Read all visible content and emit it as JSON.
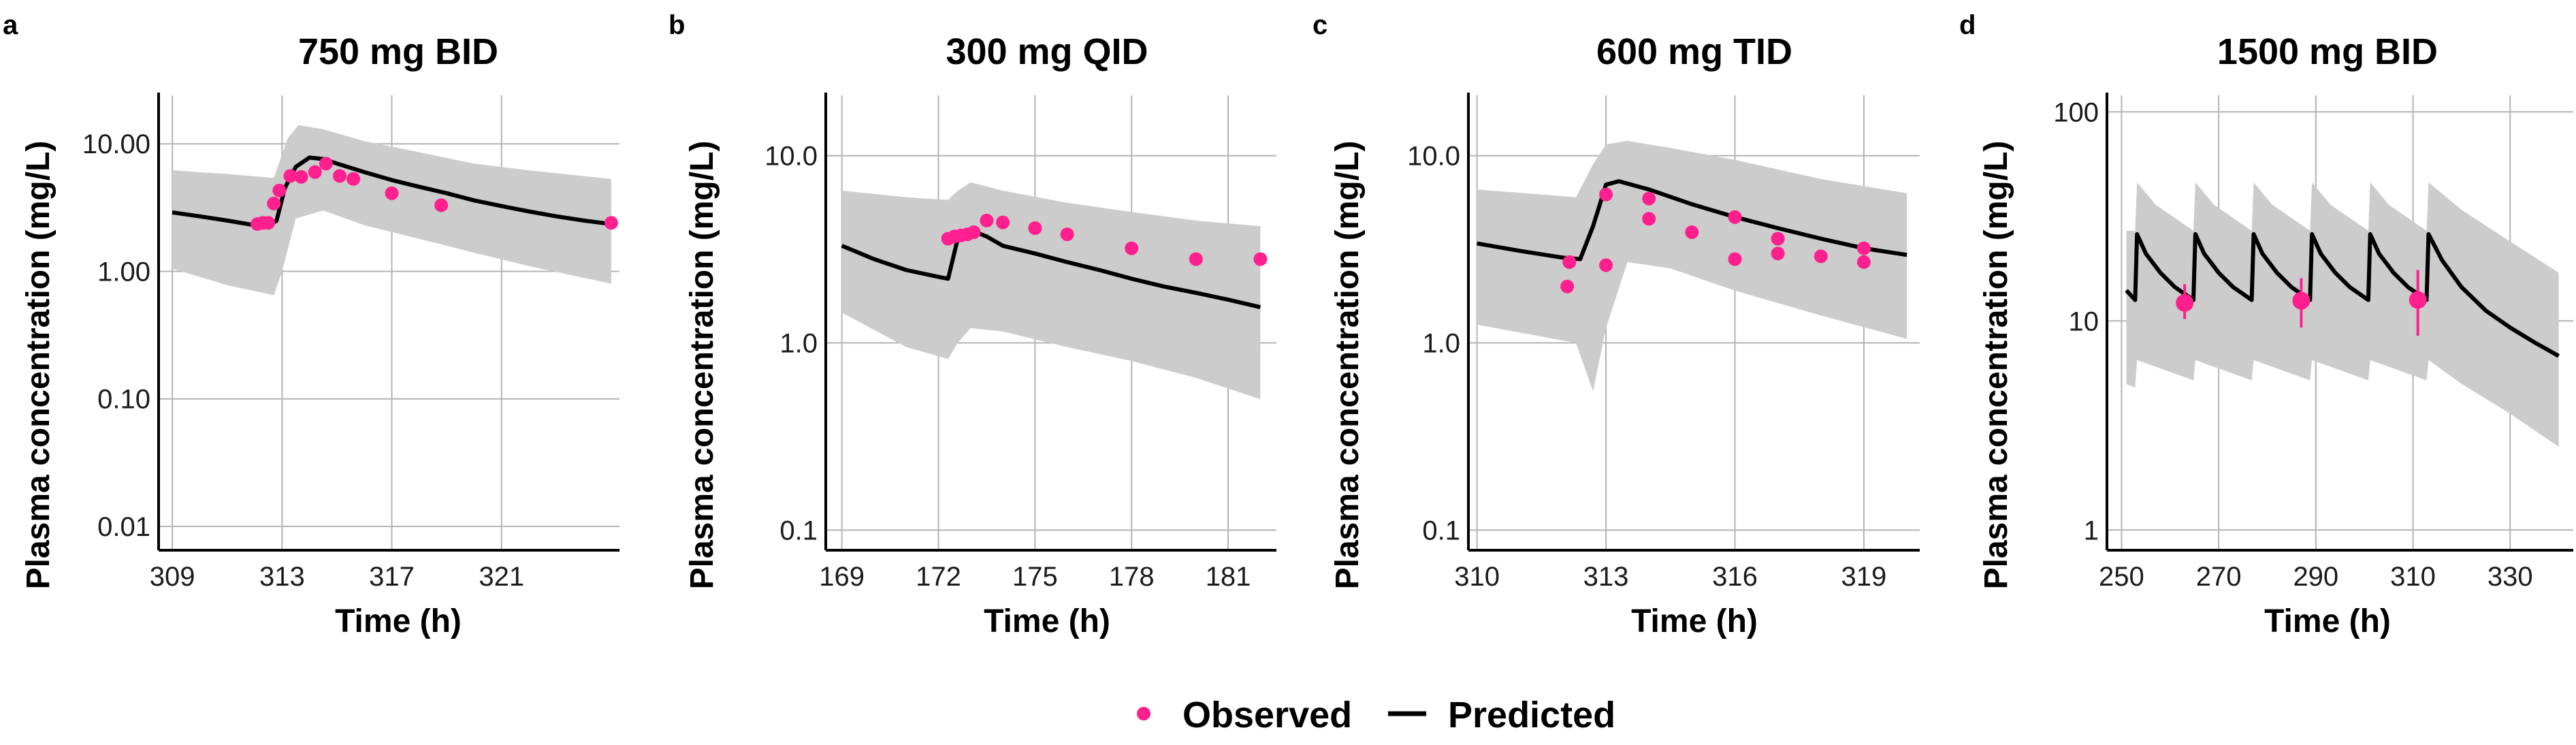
{
  "colors": {
    "observed": "#ff1f8e",
    "predicted": "#000000",
    "band": "#cccccc",
    "grid": "#b3b3b3",
    "axis": "#000000"
  },
  "legend": {
    "observed_label": "Observed",
    "predicted_label": "Predicted"
  },
  "chart_data": [
    {
      "panel": "a",
      "type": "line",
      "title": "750 mg BID",
      "xlabel": "Time (h)",
      "ylabel": "Plasma concentration (mg/L)",
      "yscale": "log",
      "xlim": [
        308.5,
        325.3
      ],
      "ylim": [
        0.0065,
        24
      ],
      "xticks": [
        309,
        313,
        317,
        321
      ],
      "xtick_labels": [
        "309",
        "313",
        "317",
        "321"
      ],
      "yticks": [
        0.01,
        0.1,
        1,
        10
      ],
      "ytick_labels": [
        "0.01",
        "0.10",
        "1.00",
        "10.00"
      ],
      "predicted": [
        [
          309,
          2.9
        ],
        [
          310,
          2.7
        ],
        [
          311,
          2.5
        ],
        [
          312,
          2.3
        ],
        [
          312.5,
          2.25
        ],
        [
          312.8,
          2.5
        ],
        [
          313.1,
          4.5
        ],
        [
          313.5,
          6.6
        ],
        [
          314,
          7.8
        ],
        [
          314.5,
          7.6
        ],
        [
          315,
          7.0
        ],
        [
          316,
          6.0
        ],
        [
          317,
          5.2
        ],
        [
          318,
          4.6
        ],
        [
          319,
          4.1
        ],
        [
          320,
          3.6
        ],
        [
          321,
          3.25
        ],
        [
          322,
          2.95
        ],
        [
          323,
          2.7
        ],
        [
          324,
          2.5
        ],
        [
          325,
          2.35
        ]
      ],
      "band_upper": [
        [
          309,
          6.2
        ],
        [
          311,
          5.8
        ],
        [
          312.7,
          5.4
        ],
        [
          313.2,
          11.0
        ],
        [
          313.6,
          14.0
        ],
        [
          314.5,
          13.0
        ],
        [
          316,
          10.5
        ],
        [
          318,
          8.6
        ],
        [
          320,
          7.0
        ],
        [
          322,
          6.2
        ],
        [
          325,
          5.3
        ]
      ],
      "band_lower": [
        [
          325,
          0.8
        ],
        [
          322,
          1.1
        ],
        [
          320,
          1.4
        ],
        [
          318,
          1.8
        ],
        [
          316,
          2.3
        ],
        [
          314.5,
          3.0
        ],
        [
          313.5,
          2.6
        ],
        [
          313,
          1.0
        ],
        [
          312.7,
          0.65
        ],
        [
          311,
          0.78
        ],
        [
          309,
          1.05
        ]
      ],
      "observed": [
        [
          312.1,
          2.35
        ],
        [
          312.3,
          2.4
        ],
        [
          312.5,
          2.4
        ],
        [
          312.7,
          3.4
        ],
        [
          312.9,
          4.3
        ],
        [
          313.3,
          5.6
        ],
        [
          313.7,
          5.5
        ],
        [
          314.2,
          6.0
        ],
        [
          314.6,
          7.0
        ],
        [
          315.1,
          5.6
        ],
        [
          315.6,
          5.3
        ],
        [
          317,
          4.1
        ],
        [
          318.8,
          3.3
        ],
        [
          325,
          2.4
        ]
      ],
      "error_bars": []
    },
    {
      "panel": "b",
      "type": "line",
      "title": "300 mg QID",
      "xlabel": "Time (h)",
      "ylabel": "Plasma concentration (mg/L)",
      "yscale": "log",
      "xlim": [
        168.5,
        182.5
      ],
      "ylim": [
        0.078,
        21
      ],
      "xticks": [
        169,
        172,
        175,
        178,
        181
      ],
      "xtick_labels": [
        "169",
        "172",
        "175",
        "178",
        "181"
      ],
      "yticks": [
        0.1,
        1,
        10
      ],
      "ytick_labels": [
        "0.1",
        "1.0",
        "10.0"
      ],
      "predicted": [
        [
          169,
          3.3
        ],
        [
          170,
          2.8
        ],
        [
          171,
          2.45
        ],
        [
          172,
          2.25
        ],
        [
          172.3,
          2.2
        ],
        [
          172.6,
          3.6
        ],
        [
          173,
          4.0
        ],
        [
          173.5,
          3.7
        ],
        [
          174,
          3.3
        ],
        [
          175,
          3.0
        ],
        [
          176,
          2.7
        ],
        [
          177,
          2.45
        ],
        [
          178,
          2.2
        ],
        [
          179,
          2.0
        ],
        [
          180,
          1.85
        ],
        [
          181,
          1.7
        ],
        [
          182,
          1.55
        ]
      ],
      "band_upper": [
        [
          169,
          6.5
        ],
        [
          171,
          6.0
        ],
        [
          172.3,
          5.8
        ],
        [
          172.6,
          6.5
        ],
        [
          173,
          7.2
        ],
        [
          174,
          6.5
        ],
        [
          176,
          5.6
        ],
        [
          178,
          5.0
        ],
        [
          180,
          4.5
        ],
        [
          182,
          4.2
        ]
      ],
      "band_lower": [
        [
          182,
          0.5
        ],
        [
          180,
          0.65
        ],
        [
          178,
          0.8
        ],
        [
          176,
          0.95
        ],
        [
          174,
          1.15
        ],
        [
          173,
          1.2
        ],
        [
          172.6,
          1.0
        ],
        [
          172.3,
          0.82
        ],
        [
          171,
          0.95
        ],
        [
          169,
          1.45
        ]
      ],
      "observed": [
        [
          172.3,
          3.6
        ],
        [
          172.5,
          3.7
        ],
        [
          172.7,
          3.75
        ],
        [
          172.9,
          3.8
        ],
        [
          173.1,
          3.9
        ],
        [
          173.5,
          4.5
        ],
        [
          174,
          4.4
        ],
        [
          175,
          4.1
        ],
        [
          176,
          3.8
        ],
        [
          178,
          3.2
        ],
        [
          180,
          2.8
        ],
        [
          182,
          2.8
        ]
      ],
      "error_bars": []
    },
    {
      "panel": "c",
      "type": "line",
      "title": "600 mg TID",
      "xlabel": "Time (h)",
      "ylabel": "Plasma concentration (mg/L)",
      "yscale": "log",
      "xlim": [
        309.8,
        320.3
      ],
      "ylim": [
        0.078,
        21
      ],
      "xticks": [
        310,
        313,
        316,
        319
      ],
      "xtick_labels": [
        "310",
        "313",
        "316",
        "319"
      ],
      "yticks": [
        0.1,
        1,
        10
      ],
      "ytick_labels": [
        "0.1",
        "1.0",
        "10.0"
      ],
      "predicted": [
        [
          310,
          3.4
        ],
        [
          311,
          3.1
        ],
        [
          312,
          2.85
        ],
        [
          312.4,
          2.8
        ],
        [
          312.7,
          4.2
        ],
        [
          313,
          7.0
        ],
        [
          313.3,
          7.3
        ],
        [
          314,
          6.6
        ],
        [
          315,
          5.5
        ],
        [
          316,
          4.7
        ],
        [
          317,
          4.1
        ],
        [
          318,
          3.6
        ],
        [
          319,
          3.2
        ],
        [
          320,
          2.95
        ]
      ],
      "band_upper": [
        [
          310,
          6.6
        ],
        [
          312.3,
          6.0
        ],
        [
          312.7,
          9.0
        ],
        [
          313,
          11.5
        ],
        [
          313.5,
          12.0
        ],
        [
          314.5,
          11.0
        ],
        [
          316,
          9.5
        ],
        [
          318,
          7.5
        ],
        [
          320,
          6.3
        ]
      ],
      "band_lower": [
        [
          320,
          1.05
        ],
        [
          318,
          1.4
        ],
        [
          316,
          1.9
        ],
        [
          314.5,
          2.5
        ],
        [
          313.5,
          2.7
        ],
        [
          313,
          1.2
        ],
        [
          312.7,
          0.55
        ],
        [
          312.3,
          1.0
        ],
        [
          310,
          1.25
        ]
      ],
      "observed": [
        [
          312.1,
          2.0
        ],
        [
          312.15,
          2.7
        ],
        [
          313,
          2.6
        ],
        [
          313,
          6.2
        ],
        [
          314,
          4.6
        ],
        [
          314,
          5.9
        ],
        [
          315,
          3.9
        ],
        [
          316,
          2.8
        ],
        [
          316,
          4.7
        ],
        [
          317,
          3.0
        ],
        [
          317,
          3.6
        ],
        [
          318,
          2.9
        ],
        [
          319,
          2.7
        ],
        [
          319,
          3.2
        ]
      ],
      "error_bars": []
    },
    {
      "panel": "d",
      "type": "line",
      "title": "1500 mg BID",
      "xlabel": "Time (h)",
      "ylabel": "Plasma concentration (mg/L)",
      "yscale": "log",
      "xlim": [
        247,
        343
      ],
      "ylim": [
        0.8,
        120
      ],
      "xticks": [
        250,
        270,
        290,
        310,
        330
      ],
      "xtick_labels": [
        "250",
        "270",
        "290",
        "310",
        "330"
      ],
      "yticks": [
        1,
        10,
        100
      ],
      "ytick_labels": [
        "1",
        "10",
        "100"
      ],
      "predicted": [
        [
          251,
          14
        ],
        [
          252.8,
          12.6
        ],
        [
          253.2,
          26
        ],
        [
          255,
          21
        ],
        [
          258,
          17
        ],
        [
          261,
          14.5
        ],
        [
          264.8,
          12.6
        ],
        [
          265.2,
          26
        ],
        [
          267,
          21
        ],
        [
          270,
          17
        ],
        [
          273,
          14.5
        ],
        [
          276.8,
          12.6
        ],
        [
          277.2,
          26
        ],
        [
          279,
          21
        ],
        [
          282,
          17
        ],
        [
          285,
          14.5
        ],
        [
          288.8,
          12.6
        ],
        [
          289.2,
          26
        ],
        [
          291,
          21
        ],
        [
          294,
          17
        ],
        [
          297,
          14.5
        ],
        [
          300.8,
          12.6
        ],
        [
          301.2,
          26
        ],
        [
          303,
          21
        ],
        [
          306,
          17
        ],
        [
          309,
          14.5
        ],
        [
          312.8,
          12.6
        ],
        [
          313.2,
          26
        ],
        [
          316,
          19.5
        ],
        [
          320,
          14.5
        ],
        [
          325,
          11.2
        ],
        [
          330,
          9.3
        ],
        [
          335,
          7.9
        ],
        [
          340,
          6.8
        ]
      ],
      "band_upper": [
        [
          251,
          27
        ],
        [
          252.8,
          27
        ],
        [
          253.2,
          46
        ],
        [
          257,
          36
        ],
        [
          264.8,
          27
        ],
        [
          265.2,
          46
        ],
        [
          269,
          36
        ],
        [
          276.8,
          27
        ],
        [
          277.2,
          46
        ],
        [
          281,
          36
        ],
        [
          288.8,
          27
        ],
        [
          289.2,
          46
        ],
        [
          293,
          36
        ],
        [
          300.8,
          27
        ],
        [
          301.2,
          46
        ],
        [
          305,
          36
        ],
        [
          312.8,
          27
        ],
        [
          313.2,
          46
        ],
        [
          320,
          34
        ],
        [
          330,
          24
        ],
        [
          340,
          17
        ]
      ],
      "band_lower": [
        [
          340,
          2.5
        ],
        [
          330,
          3.6
        ],
        [
          320,
          5.0
        ],
        [
          313.2,
          6.5
        ],
        [
          312.8,
          5.2
        ],
        [
          301.2,
          6.5
        ],
        [
          300.8,
          5.2
        ],
        [
          289.2,
          6.5
        ],
        [
          288.8,
          5.2
        ],
        [
          277.2,
          6.5
        ],
        [
          276.8,
          5.2
        ],
        [
          265.2,
          6.5
        ],
        [
          264.8,
          5.2
        ],
        [
          253.2,
          6.5
        ],
        [
          252.8,
          4.8
        ],
        [
          251,
          5.0
        ]
      ],
      "observed": [
        [
          263,
          12.2
        ],
        [
          287,
          12.5
        ],
        [
          311,
          12.6
        ]
      ],
      "error_bars": [
        [
          263,
          10.2,
          15.0
        ],
        [
          287,
          9.3,
          16.0
        ],
        [
          311,
          8.5,
          17.5
        ]
      ]
    }
  ]
}
